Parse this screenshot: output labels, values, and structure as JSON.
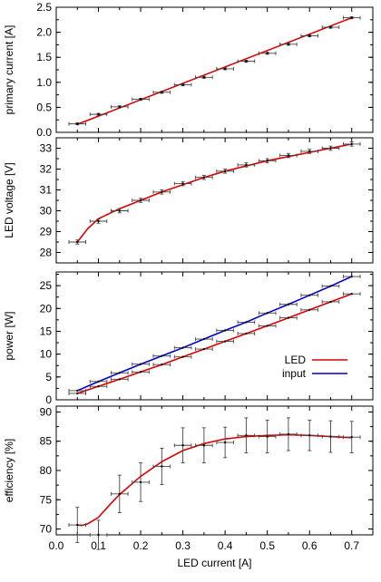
{
  "chart_data": [
    {
      "type": "line",
      "ylabel": "primary current [A]",
      "xlim": [
        0.0,
        0.75
      ],
      "ylim": [
        0.0,
        2.5
      ],
      "yticks": [
        0.0,
        0.5,
        1.0,
        1.5,
        2.0,
        2.5
      ],
      "ytick_labels": [
        "0.0",
        "0.5",
        "1.0",
        "1.5",
        "2.0",
        "2.5"
      ],
      "xtick_labels_shown": false,
      "grid": false,
      "series": [
        {
          "color": "#dd0000",
          "kind": "fit",
          "x": [
            0.05,
            0.7
          ],
          "y": [
            0.16,
            2.29
          ]
        },
        {
          "color": "#000000",
          "kind": "points-with-xerror",
          "x": [
            0.05,
            0.1,
            0.15,
            0.2,
            0.25,
            0.3,
            0.35,
            0.4,
            0.45,
            0.5,
            0.55,
            0.6,
            0.65,
            0.7
          ],
          "y": [
            0.17,
            0.36,
            0.51,
            0.66,
            0.8,
            0.95,
            1.1,
            1.27,
            1.42,
            1.58,
            1.76,
            1.93,
            2.1,
            2.29
          ],
          "xerr": 0.02,
          "yerr": 0.02
        }
      ]
    },
    {
      "type": "line",
      "ylabel": "LED voltage [V]",
      "xlim": [
        0.0,
        0.75
      ],
      "ylim": [
        27.5,
        33.5
      ],
      "yticks": [
        28,
        29,
        30,
        31,
        32,
        33
      ],
      "ytick_labels": [
        "28",
        "29",
        "30",
        "31",
        "32",
        "33"
      ],
      "xtick_labels_shown": false,
      "grid": false,
      "series": [
        {
          "color": "#dd0000",
          "kind": "fit",
          "x": [
            0.05,
            0.075,
            0.1,
            0.15,
            0.2,
            0.25,
            0.3,
            0.35,
            0.4,
            0.45,
            0.5,
            0.55,
            0.6,
            0.65,
            0.7
          ],
          "y": [
            28.5,
            29.15,
            29.62,
            30.1,
            30.5,
            30.9,
            31.25,
            31.6,
            31.9,
            32.15,
            32.4,
            32.6,
            32.8,
            33.0,
            33.2
          ]
        },
        {
          "color": "#000000",
          "kind": "points-with-xerror",
          "x": [
            0.05,
            0.1,
            0.15,
            0.2,
            0.25,
            0.3,
            0.35,
            0.4,
            0.45,
            0.5,
            0.55,
            0.6,
            0.65,
            0.7
          ],
          "y": [
            28.5,
            29.5,
            30.0,
            30.5,
            30.9,
            31.3,
            31.6,
            31.9,
            32.2,
            32.4,
            32.65,
            32.85,
            33.0,
            33.2
          ],
          "xerr": 0.02,
          "yerr": 0.1
        }
      ]
    },
    {
      "type": "line",
      "ylabel": "power [W]",
      "xlim": [
        0.0,
        0.75
      ],
      "ylim": [
        0,
        28
      ],
      "yticks": [
        0,
        5,
        10,
        15,
        20,
        25
      ],
      "ytick_labels": [
        "0",
        "5",
        "10",
        "15",
        "20",
        "25"
      ],
      "xtick_labels_shown": false,
      "grid": false,
      "legend": "lower-right",
      "series": [
        {
          "name": "LED",
          "color": "#dd0000",
          "x": [
            0.05,
            0.1,
            0.15,
            0.2,
            0.25,
            0.3,
            0.35,
            0.4,
            0.45,
            0.5,
            0.55,
            0.6,
            0.65,
            0.7
          ],
          "y": [
            1.4,
            2.95,
            4.5,
            6.1,
            7.7,
            9.4,
            11.1,
            12.8,
            14.5,
            16.2,
            17.95,
            19.7,
            21.45,
            23.2
          ]
        },
        {
          "name": "input",
          "color": "#0000cc",
          "x": [
            0.05,
            0.1,
            0.15,
            0.2,
            0.25,
            0.3,
            0.35,
            0.4,
            0.45,
            0.5,
            0.55,
            0.6,
            0.65,
            0.7
          ],
          "y": [
            2.0,
            4.0,
            5.9,
            7.8,
            9.6,
            11.4,
            13.3,
            15.2,
            17.0,
            19.0,
            20.9,
            22.9,
            24.9,
            27.0
          ]
        }
      ]
    },
    {
      "type": "line",
      "ylabel": "efficiency [%]",
      "xlabel": "LED current [A]",
      "xlim": [
        0.0,
        0.75
      ],
      "ylim": [
        69,
        91
      ],
      "xticks": [
        0.0,
        0.1,
        0.2,
        0.3,
        0.4,
        0.5,
        0.6,
        0.7
      ],
      "xtick_labels": [
        "0.0",
        "0.1",
        "0.2",
        "0.3",
        "0.4",
        "0.5",
        "0.6",
        "0.7"
      ],
      "yticks": [
        70,
        75,
        80,
        85,
        90
      ],
      "ytick_labels": [
        "70",
        "75",
        "80",
        "85",
        "90"
      ],
      "grid": false,
      "series": [
        {
          "color": "#dd0000",
          "kind": "fit",
          "x": [
            0.05,
            0.06,
            0.075,
            0.1,
            0.125,
            0.15,
            0.2,
            0.25,
            0.3,
            0.35,
            0.4,
            0.45,
            0.5,
            0.55,
            0.6,
            0.65,
            0.7
          ],
          "y": [
            70.7,
            70.6,
            70.9,
            72.0,
            74.0,
            75.9,
            79.0,
            81.5,
            83.4,
            84.6,
            85.4,
            85.8,
            86.0,
            86.1,
            86.0,
            85.8,
            85.6
          ]
        },
        {
          "color": "#000000",
          "kind": "points-with-error",
          "x": [
            0.05,
            0.1,
            0.15,
            0.2,
            0.25,
            0.3,
            0.35,
            0.4,
            0.45,
            0.5,
            0.55,
            0.6,
            0.65,
            0.7
          ],
          "y": [
            70.7,
            69.0,
            76.0,
            78.0,
            80.7,
            84.3,
            84.3,
            84.8,
            86.0,
            85.8,
            86.2,
            86.0,
            85.8,
            85.7
          ],
          "xerr": 0.02,
          "yerr": [
            3.0,
            2.5,
            3.2,
            3.3,
            3.1,
            3.0,
            3.0,
            2.6,
            3.0,
            2.8,
            2.8,
            2.6,
            2.7,
            2.7
          ]
        }
      ]
    }
  ]
}
